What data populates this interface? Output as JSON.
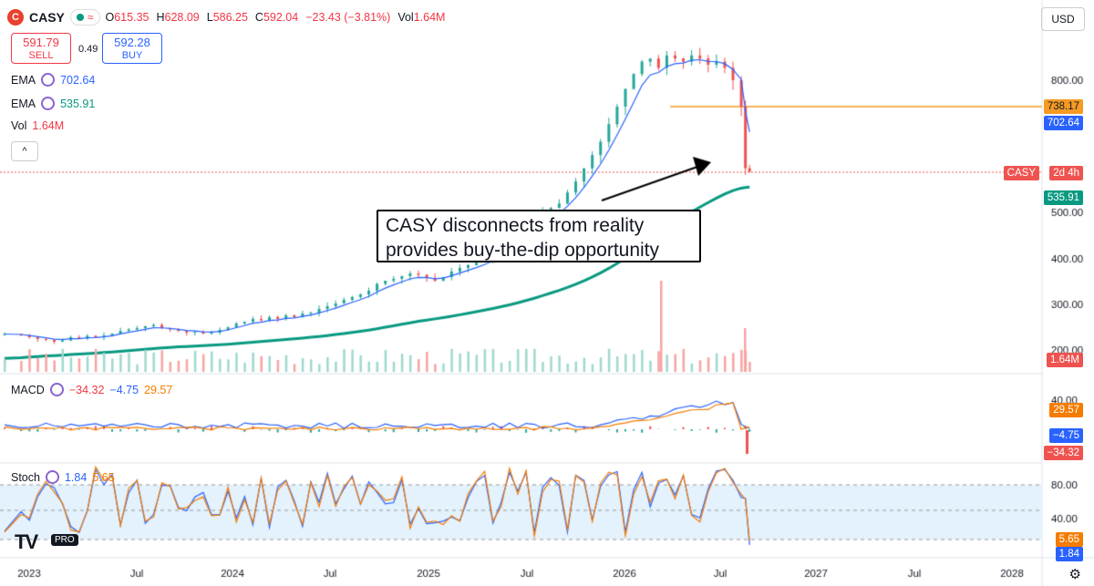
{
  "header": {
    "logo_letter": "C",
    "symbol": "CASY",
    "wave": "≈",
    "ohlc": [
      {
        "k": "O",
        "v": "615.35"
      },
      {
        "k": "H",
        "v": "628.09"
      },
      {
        "k": "L",
        "v": "586.25"
      },
      {
        "k": "C",
        "v": "592.04"
      }
    ],
    "change": "−23.43 (−3.81%)",
    "vol_label": "Vol",
    "vol_value": "1.64M"
  },
  "trade": {
    "sell_price": "591.79",
    "sell_label": "SELL",
    "spread": "0.49",
    "buy_price": "592.28",
    "buy_label": "BUY"
  },
  "indicators": {
    "ema1_label": "EMA",
    "ema1_value": "702.64",
    "ema2_label": "EMA",
    "ema2_value": "535.91",
    "vol_label": "Vol",
    "vol_value": "1.64M",
    "collapse_icon": "^"
  },
  "currency": "USD",
  "annotation": {
    "line1": "CASY disconnects from reality",
    "line2": "provides buy-the-dip opportunity"
  },
  "price_tags": {
    "level": "738.17",
    "ema1": "702.64",
    "sym": "CASY",
    "countdown": "2d 4h",
    "ema2": "535.91",
    "vol": "1.64M",
    "macd_hist": "29.57",
    "macd_signal": "−4.75",
    "macd_line": "−34.32",
    "stoch_k": "5.65",
    "stoch_d": "1.84"
  },
  "macd_legend": {
    "label": "MACD",
    "v1": "−34.32",
    "v2": "−4.75",
    "v3": "29.57"
  },
  "stoch_legend": {
    "label": "Stoch",
    "v1": "1.84",
    "v2": "5.65"
  },
  "branding": {
    "logo": "TV",
    "pro": "PRO"
  },
  "colors": {
    "up": "#26a69a",
    "down": "#ef5350",
    "ema_fast": "#2962ff",
    "ema_slow": "#089981",
    "level": "#f59a23",
    "stoch_fill": "#e3f2fd"
  },
  "chart_data": {
    "type": "candlestick",
    "price_ticks": [
      800,
      500,
      400,
      300,
      200
    ],
    "macd_ticks": [
      40
    ],
    "stoch_ticks": [
      80,
      40
    ],
    "x_ticks": [
      "2023",
      "Jul",
      "2024",
      "Jul",
      "2025",
      "Jul",
      "2026",
      "Jul",
      "2027",
      "Jul",
      "2028"
    ],
    "horizontal_level": 738.17,
    "series": [
      {
        "name": "EMA",
        "value": 702.64
      },
      {
        "name": "EMA",
        "value": 535.91
      }
    ],
    "close_path": [
      [
        0,
        235
      ],
      [
        8,
        232
      ],
      [
        12,
        228
      ],
      [
        16,
        224
      ],
      [
        20,
        222
      ],
      [
        24,
        218
      ],
      [
        28,
        221
      ],
      [
        32,
        228
      ],
      [
        36,
        225
      ],
      [
        40,
        231
      ],
      [
        44,
        228
      ],
      [
        48,
        232
      ],
      [
        52,
        236
      ],
      [
        56,
        242
      ],
      [
        60,
        245
      ],
      [
        64,
        248
      ],
      [
        68,
        252
      ],
      [
        72,
        255
      ],
      [
        76,
        248
      ],
      [
        80,
        245
      ],
      [
        84,
        242
      ],
      [
        88,
        238
      ],
      [
        92,
        240
      ],
      [
        96,
        236
      ],
      [
        100,
        238
      ],
      [
        104,
        244
      ],
      [
        108,
        250
      ],
      [
        112,
        258
      ],
      [
        116,
        262
      ],
      [
        120,
        268
      ],
      [
        124,
        265
      ],
      [
        128,
        272
      ],
      [
        132,
        268
      ],
      [
        136,
        276
      ],
      [
        140,
        272
      ],
      [
        144,
        280
      ],
      [
        148,
        282
      ],
      [
        152,
        290
      ],
      [
        156,
        296
      ],
      [
        160,
        302
      ],
      [
        164,
        310
      ],
      [
        168,
        316
      ],
      [
        172,
        322
      ],
      [
        176,
        330
      ],
      [
        180,
        345
      ],
      [
        184,
        352
      ],
      [
        188,
        356
      ],
      [
        192,
        362
      ],
      [
        196,
        368
      ],
      [
        200,
        365
      ],
      [
        204,
        358
      ],
      [
        208,
        352
      ],
      [
        212,
        360
      ],
      [
        216,
        372
      ],
      [
        220,
        380
      ],
      [
        224,
        386
      ],
      [
        228,
        392
      ],
      [
        232,
        400
      ],
      [
        236,
        410
      ],
      [
        240,
        418
      ],
      [
        244,
        432
      ],
      [
        248,
        450
      ],
      [
        252,
        468
      ],
      [
        256,
        482
      ],
      [
        260,
        500
      ],
      [
        264,
        510
      ],
      [
        268,
        520
      ],
      [
        272,
        545
      ],
      [
        276,
        570
      ],
      [
        280,
        600
      ],
      [
        284,
        630
      ],
      [
        288,
        660
      ],
      [
        292,
        700
      ],
      [
        296,
        740
      ],
      [
        300,
        780
      ],
      [
        304,
        820
      ],
      [
        308,
        860
      ],
      [
        312,
        870
      ],
      [
        316,
        840
      ],
      [
        320,
        880
      ],
      [
        324,
        870
      ],
      [
        328,
        860
      ],
      [
        332,
        880
      ],
      [
        336,
        870
      ],
      [
        340,
        850
      ],
      [
        344,
        860
      ],
      [
        348,
        840
      ],
      [
        352,
        800
      ],
      [
        356,
        740
      ],
      [
        358,
        600
      ],
      [
        360,
        592
      ]
    ]
  }
}
